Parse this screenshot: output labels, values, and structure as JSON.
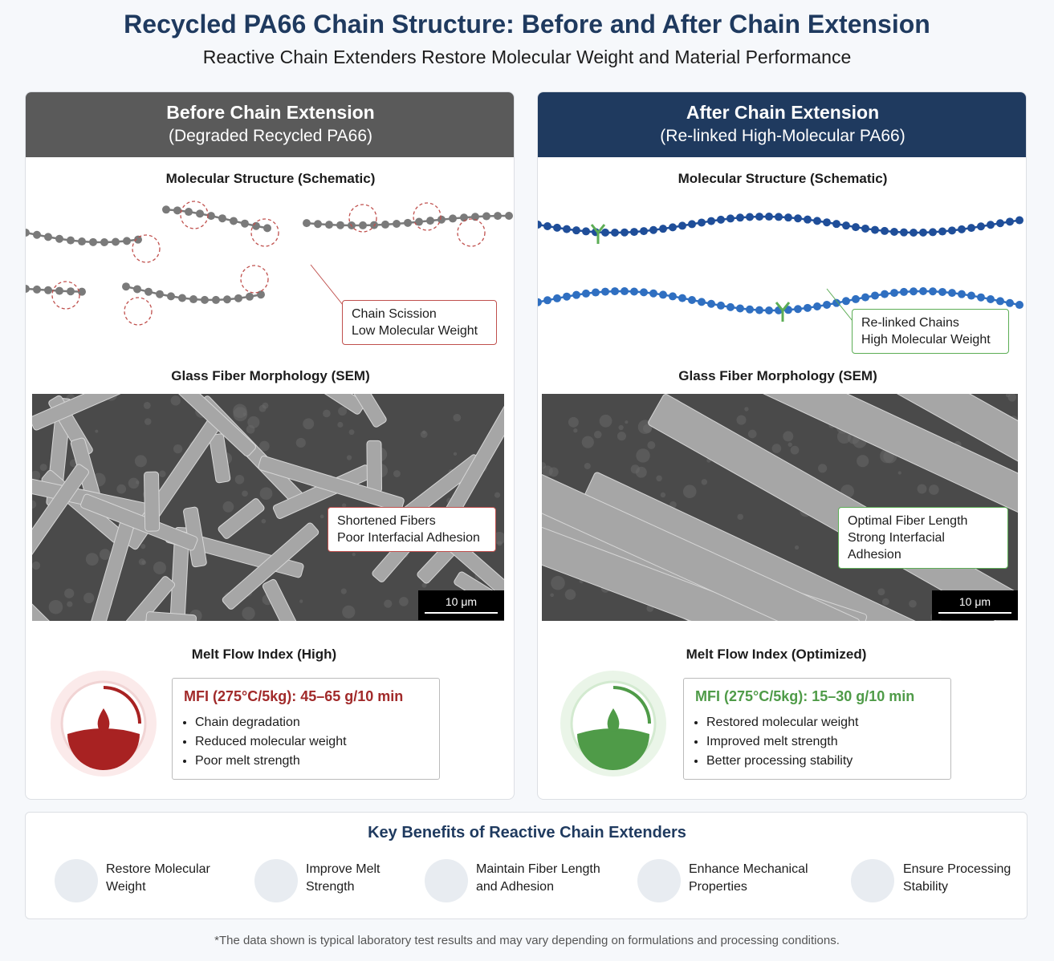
{
  "header": {
    "title": "Recycled PA66 Chain Structure: Before and After Chain Extension",
    "subtitle": "Reactive Chain Extenders Restore Molecular Weight and Material Performance"
  },
  "panels": [
    {
      "heading": "Before Chain Extension",
      "subheading": "(Degraded Recycled PA66)",
      "structure_label": "Molecular Structure (Schematic)",
      "structure_callout": [
        "Chain Scission",
        "Low Molecular Weight"
      ],
      "sem_label": "Glass Fiber Morphology (SEM)",
      "sem_callout": [
        "Shortened Fibers",
        "Poor Interfacial Adhesion"
      ],
      "scale_bar": "10 μm",
      "mfi_label": "Melt Flow Index (High)",
      "mfi_value": "MFI (275°C/5kg): 45–65 g/10 min",
      "mfi_points": [
        "Chain degradation",
        "Reduced molecular weight",
        "Poor melt strength"
      ]
    },
    {
      "heading": "After Chain Extension",
      "subheading": "(Re-linked High-Molecular PA66)",
      "structure_label": "Molecular Structure (Schematic)",
      "structure_callout": [
        "Re-linked Chains",
        "High Molecular Weight"
      ],
      "sem_label": "Glass Fiber Morphology (SEM)",
      "sem_callout": [
        "Optimal Fiber Length",
        "Strong Interfacial Adhesion"
      ],
      "scale_bar": "10 μm",
      "mfi_label": "Melt Flow Index (Optimized)",
      "mfi_value": "MFI (275°C/5kg): 15–30 g/10 min",
      "mfi_points": [
        "Restored molecular weight",
        "Improved melt strength",
        "Better processing stability"
      ]
    }
  ],
  "benefits": {
    "title": "Key Benefits of Reactive Chain Extenders",
    "items": [
      [
        "Restore Molecular",
        "Weight"
      ],
      [
        "Improve Melt",
        "Strength"
      ],
      [
        "Maintain Fiber Length",
        "and Adhesion"
      ],
      [
        "Enhance Mechanical",
        "Properties"
      ],
      [
        "Ensure Processing",
        "Stability"
      ]
    ]
  },
  "footnote": "*The data shown is typical laboratory test results and may vary depending on formulations and processing conditions."
}
